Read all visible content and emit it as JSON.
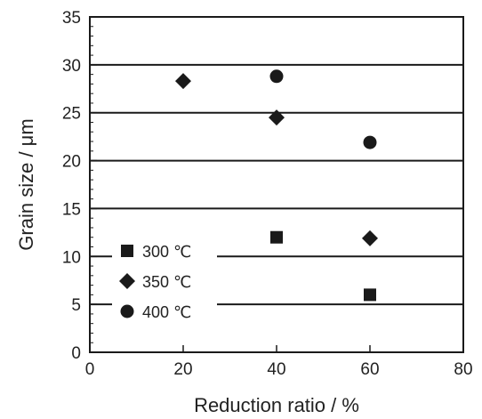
{
  "chart_data": {
    "type": "scatter",
    "title": "",
    "xlabel": "Reduction ratio / %",
    "ylabel": "Grain size / μm",
    "xlim": [
      0,
      80
    ],
    "ylim": [
      0,
      35
    ],
    "xticks": [
      0,
      20,
      40,
      60,
      80
    ],
    "yticks": [
      0,
      5,
      10,
      15,
      20,
      25,
      30,
      35
    ],
    "xtick_labels": [
      "0",
      "20",
      "40",
      "60",
      "80"
    ],
    "ytick_labels": [
      "0",
      "5",
      "10",
      "15",
      "20",
      "25",
      "30",
      "35"
    ],
    "grid": "horizontal major lines",
    "legend_position": "lower-left",
    "series": [
      {
        "name": "300 ℃",
        "marker": "square",
        "color": "#1a1a1a",
        "points": [
          {
            "x": 40,
            "y": 12.0
          },
          {
            "x": 60,
            "y": 6.0
          }
        ]
      },
      {
        "name": "350 ℃",
        "marker": "diamond",
        "color": "#1a1a1a",
        "points": [
          {
            "x": 20,
            "y": 28.3
          },
          {
            "x": 40,
            "y": 24.5
          },
          {
            "x": 60,
            "y": 11.9
          }
        ]
      },
      {
        "name": "400 ℃",
        "marker": "circle",
        "color": "#1a1a1a",
        "points": [
          {
            "x": 40,
            "y": 28.8
          },
          {
            "x": 60,
            "y": 21.9
          }
        ]
      }
    ]
  }
}
